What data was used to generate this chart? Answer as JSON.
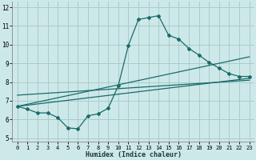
{
  "xlabel": "Humidex (Indice chaleur)",
  "bg_color": "#cde8e8",
  "grid_color": "#aacccc",
  "line_color": "#1a6b6b",
  "xlim": [
    -0.5,
    23.5
  ],
  "ylim": [
    4.8,
    12.3
  ],
  "xticks": [
    0,
    1,
    2,
    3,
    4,
    5,
    6,
    7,
    8,
    9,
    10,
    11,
    12,
    13,
    14,
    15,
    16,
    17,
    18,
    19,
    20,
    21,
    22,
    23
  ],
  "yticks": [
    5,
    6,
    7,
    8,
    9,
    10,
    11,
    12
  ],
  "curve_x": [
    0,
    1,
    2,
    3,
    4,
    5,
    6,
    7,
    8,
    9,
    10,
    11,
    12,
    13,
    14,
    15,
    16,
    17,
    18,
    19,
    20,
    21,
    22,
    23
  ],
  "curve_y": [
    6.7,
    6.55,
    6.35,
    6.35,
    6.1,
    5.55,
    5.5,
    6.2,
    6.3,
    6.6,
    7.8,
    9.95,
    11.35,
    11.45,
    11.55,
    10.5,
    10.3,
    9.8,
    9.45,
    9.05,
    8.75,
    8.45,
    8.3,
    8.3
  ],
  "line1_x": [
    0,
    23
  ],
  "line1_y": [
    6.7,
    8.2
  ],
  "line2_x": [
    0,
    23
  ],
  "line2_y": [
    6.7,
    9.35
  ],
  "line3_x": [
    0,
    23
  ],
  "line3_y": [
    7.3,
    8.1
  ]
}
